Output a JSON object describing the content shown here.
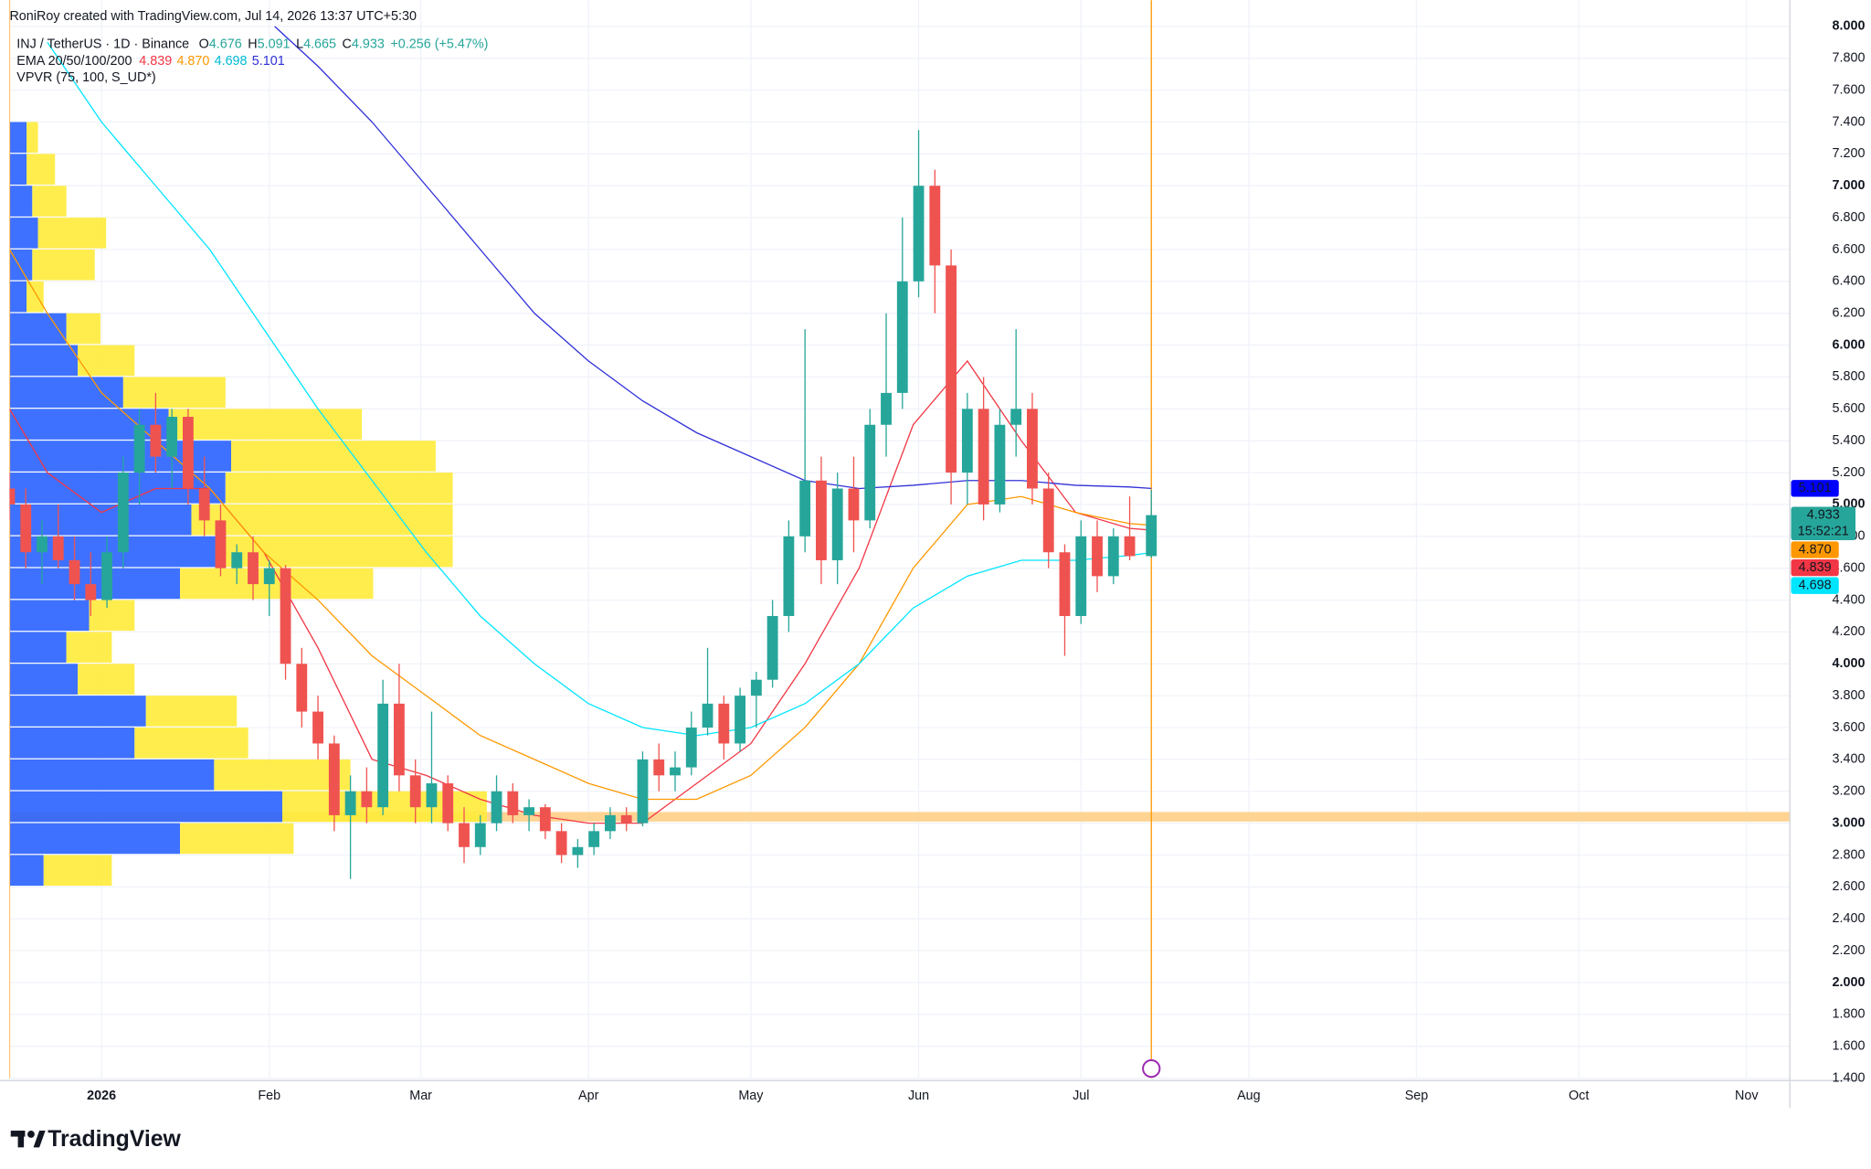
{
  "chart_data": {
    "type": "candlestick",
    "credit": "RoniRoy created with TradingView.com, Jul 14, 2026 13:37 UTC+5:30",
    "title": "INJ / TetherUS · 1D · Binance",
    "legend_ohlc": {
      "open_prefix": "O",
      "high_prefix": "H",
      "low_prefix": "L",
      "close_prefix": "C",
      "change": "+0.256 (+5.47%)"
    },
    "ema_title": "EMA 20/50/100/200",
    "vpvr_title": "VPVR (75, 100, S_UD*)",
    "countdown": "15:52:21",
    "brand": "TradingView",
    "up_color": "#26a69a",
    "down_color": "#ef5350",
    "x": [
      -17,
      -14,
      -11,
      -8,
      -5,
      -2,
      1,
      4,
      7,
      10,
      13,
      16,
      19,
      22,
      25,
      28,
      31,
      34,
      37,
      40,
      43,
      46,
      49,
      52,
      55,
      58,
      61,
      64,
      67,
      70,
      73,
      76,
      79,
      82,
      85,
      88,
      91,
      94,
      97,
      100,
      103,
      106,
      109,
      112,
      115,
      118,
      121,
      124,
      127,
      130,
      133,
      136,
      139,
      142,
      145,
      148,
      151,
      154,
      157,
      160,
      163,
      166,
      169,
      172,
      175,
      178,
      181,
      184,
      187,
      190,
      194
    ],
    "open": [
      5.1,
      5.0,
      4.7,
      4.8,
      4.65,
      4.5,
      4.4,
      4.7,
      5.2,
      5.5,
      5.3,
      5.55,
      5.1,
      4.9,
      4.6,
      4.7,
      4.5,
      4.6,
      4.0,
      3.7,
      3.5,
      3.05,
      3.2,
      3.1,
      3.75,
      3.3,
      3.1,
      3.25,
      3.0,
      2.85,
      3.0,
      3.2,
      3.05,
      3.1,
      2.95,
      2.8,
      2.85,
      2.95,
      3.05,
      3.0,
      3.4,
      3.3,
      3.35,
      3.6,
      3.75,
      3.5,
      3.8,
      3.9,
      4.3,
      4.8,
      5.15,
      4.65,
      5.1,
      4.9,
      5.5,
      5.7,
      6.4,
      7.0,
      6.5,
      5.2,
      5.6,
      5.0,
      5.5,
      5.6,
      5.1,
      4.7,
      4.3,
      4.8,
      4.55,
      4.8,
      4.676
    ],
    "high": [
      5.2,
      5.1,
      4.9,
      5.0,
      4.8,
      4.7,
      4.8,
      5.3,
      5.6,
      5.7,
      5.6,
      5.6,
      5.3,
      5.0,
      4.75,
      4.8,
      4.65,
      4.62,
      4.1,
      3.8,
      3.55,
      3.3,
      3.35,
      3.9,
      4.0,
      3.4,
      3.7,
      3.3,
      3.1,
      3.05,
      3.3,
      3.25,
      3.15,
      3.12,
      3.0,
      2.9,
      3.0,
      3.1,
      3.1,
      3.45,
      3.5,
      3.45,
      3.7,
      4.1,
      3.8,
      3.85,
      3.95,
      4.4,
      4.9,
      6.1,
      5.3,
      5.2,
      5.3,
      5.6,
      6.2,
      6.8,
      7.35,
      7.1,
      6.6,
      5.7,
      5.8,
      5.6,
      6.1,
      5.7,
      5.2,
      4.75,
      4.9,
      4.9,
      4.85,
      5.05,
      5.091
    ],
    "low": [
      4.9,
      4.6,
      4.5,
      4.6,
      4.4,
      4.3,
      4.35,
      4.6,
      5.0,
      5.2,
      5.1,
      5.0,
      4.8,
      4.55,
      4.5,
      4.4,
      4.3,
      3.9,
      3.6,
      3.4,
      2.95,
      2.65,
      3.0,
      3.05,
      3.2,
      3.0,
      3.0,
      2.95,
      2.75,
      2.8,
      2.95,
      3.0,
      2.95,
      2.9,
      2.75,
      2.72,
      2.8,
      2.9,
      2.95,
      2.98,
      3.2,
      3.2,
      3.3,
      3.55,
      3.4,
      3.45,
      3.6,
      3.85,
      4.2,
      4.7,
      4.5,
      4.5,
      4.7,
      4.85,
      5.3,
      5.6,
      6.3,
      6.2,
      5.0,
      5.0,
      4.9,
      4.95,
      5.3,
      5.0,
      4.6,
      4.05,
      4.25,
      4.45,
      4.5,
      4.65,
      4.665
    ],
    "close": [
      5.0,
      4.7,
      4.8,
      4.65,
      4.5,
      4.4,
      4.7,
      5.2,
      5.5,
      5.3,
      5.55,
      5.1,
      4.9,
      4.6,
      4.7,
      4.5,
      4.6,
      4.0,
      3.7,
      3.5,
      3.05,
      3.2,
      3.1,
      3.75,
      3.3,
      3.1,
      3.25,
      3.0,
      2.85,
      3.0,
      3.2,
      3.05,
      3.1,
      2.95,
      2.8,
      2.85,
      2.95,
      3.05,
      3.0,
      3.4,
      3.3,
      3.35,
      3.6,
      3.75,
      3.5,
      3.8,
      3.9,
      4.3,
      4.8,
      5.15,
      4.65,
      5.1,
      4.9,
      5.5,
      5.7,
      6.4,
      7.0,
      6.5,
      5.2,
      5.6,
      5.0,
      5.5,
      5.6,
      5.1,
      4.7,
      4.3,
      4.8,
      4.55,
      4.8,
      4.676,
      4.933
    ],
    "ema": [
      {
        "color": "#f23645",
        "x": [
          -17,
          -10,
          0,
          10,
          20,
          30,
          40,
          50,
          60,
          70,
          80,
          90,
          100,
          110,
          120,
          130,
          140,
          150,
          160,
          170,
          180,
          190,
          194
        ],
        "values": [
          5.6,
          5.2,
          4.95,
          5.1,
          5.1,
          4.7,
          4.1,
          3.4,
          3.3,
          3.15,
          3.05,
          3.0,
          3.0,
          3.25,
          3.5,
          4.0,
          4.6,
          5.5,
          5.9,
          5.4,
          4.95,
          4.85,
          4.839
        ],
        "last": {
          "value": 4.839,
          "label": "4.839"
        }
      },
      {
        "color": "#ff9800",
        "x": [
          -17,
          -10,
          0,
          10,
          20,
          30,
          40,
          50,
          60,
          70,
          80,
          90,
          100,
          110,
          120,
          130,
          140,
          150,
          160,
          170,
          180,
          190,
          194
        ],
        "values": [
          6.6,
          6.2,
          5.7,
          5.4,
          5.1,
          4.7,
          4.4,
          4.05,
          3.8,
          3.55,
          3.4,
          3.25,
          3.15,
          3.15,
          3.3,
          3.6,
          4.0,
          4.6,
          5.0,
          5.05,
          4.95,
          4.88,
          4.87
        ],
        "last": {
          "value": 4.87,
          "label": "4.870"
        }
      },
      {
        "color": "#00e5ff",
        "x": [
          -10,
          0,
          10,
          20,
          30,
          40,
          50,
          60,
          70,
          80,
          90,
          100,
          110,
          120,
          130,
          140,
          150,
          160,
          170,
          180,
          190,
          194
        ],
        "values": [
          7.9,
          7.4,
          7.0,
          6.6,
          6.1,
          5.6,
          5.15,
          4.7,
          4.3,
          4.0,
          3.75,
          3.6,
          3.55,
          3.6,
          3.75,
          4.0,
          4.35,
          4.55,
          4.65,
          4.65,
          4.68,
          4.698
        ],
        "last": {
          "value": 4.698,
          "label": "4.698"
        }
      },
      {
        "color": "#3030d8",
        "x": [
          32,
          40,
          50,
          60,
          70,
          80,
          90,
          100,
          110,
          120,
          130,
          140,
          150,
          160,
          170,
          180,
          190,
          194
        ],
        "values": [
          8.0,
          7.75,
          7.4,
          7.0,
          6.6,
          6.2,
          5.9,
          5.65,
          5.45,
          5.3,
          5.15,
          5.1,
          5.12,
          5.15,
          5.15,
          5.12,
          5.11,
          5.101
        ],
        "last": {
          "value": 5.101,
          "label": "5.101"
        }
      }
    ],
    "vpvr": {
      "bins": [
        2.6,
        2.8,
        3.0,
        3.2,
        3.4,
        3.6,
        3.8,
        4.0,
        4.2,
        4.4,
        4.6,
        4.8,
        5.0,
        5.2,
        5.4,
        5.6,
        5.8,
        6.0,
        6.2,
        6.4,
        6.6,
        6.8,
        7.0,
        7.2,
        7.4
      ],
      "up": [
        30,
        150,
        240,
        180,
        110,
        120,
        60,
        50,
        70,
        150,
        190,
        160,
        190,
        195,
        140,
        100,
        60,
        50,
        15,
        20,
        25,
        20,
        15,
        15
      ],
      "down": [
        60,
        100,
        180,
        120,
        100,
        80,
        50,
        40,
        40,
        170,
        200,
        230,
        200,
        180,
        170,
        90,
        50,
        30,
        15,
        55,
        60,
        30,
        25,
        10
      ],
      "up_color": "#2962ff",
      "down_color": "#ffeb3b"
    },
    "zone": {
      "low": 3.01,
      "high": 3.07,
      "color": "#ffcc80"
    },
    "vlines": {
      "x": [
        -17,
        194
      ],
      "color": "#ff9800"
    },
    "xlim": [
      -17,
      312
    ],
    "xticks": [
      {
        "value": 0,
        "label": "2026"
      },
      {
        "value": 31,
        "label": "Feb"
      },
      {
        "value": 59,
        "label": "Mar"
      },
      {
        "value": 90,
        "label": "Apr"
      },
      {
        "value": 120,
        "label": "May"
      },
      {
        "value": 151,
        "label": "Jun"
      },
      {
        "value": 181,
        "label": "Jul"
      },
      {
        "value": 212,
        "label": "Aug"
      },
      {
        "value": 243,
        "label": "Sep"
      },
      {
        "value": 273,
        "label": "Oct"
      },
      {
        "value": 304,
        "label": "Nov"
      }
    ],
    "ylim": [
      1.4,
      8.0
    ],
    "yticks": [
      {
        "value": 1.4,
        "label": "1.400"
      },
      {
        "value": 1.6,
        "label": "1.600"
      },
      {
        "value": 1.8,
        "label": "1.800"
      },
      {
        "value": 2.0,
        "label": "2.000"
      },
      {
        "value": 2.2,
        "label": "2.200"
      },
      {
        "value": 2.4,
        "label": "2.400"
      },
      {
        "value": 2.6,
        "label": "2.600"
      },
      {
        "value": 2.8,
        "label": "2.800"
      },
      {
        "value": 3.0,
        "label": "3.000"
      },
      {
        "value": 3.2,
        "label": "3.200"
      },
      {
        "value": 3.4,
        "label": "3.400"
      },
      {
        "value": 3.6,
        "label": "3.600"
      },
      {
        "value": 3.8,
        "label": "3.800"
      },
      {
        "value": 4.0,
        "label": "4.000"
      },
      {
        "value": 4.2,
        "label": "4.200"
      },
      {
        "value": 4.4,
        "label": "4.400"
      },
      {
        "value": 4.6,
        "label": "4.600"
      },
      {
        "value": 4.8,
        "label": "4.800"
      },
      {
        "value": 5.0,
        "label": "5.000"
      },
      {
        "value": 5.2,
        "label": "5.200"
      },
      {
        "value": 5.4,
        "label": "5.400"
      },
      {
        "value": 5.6,
        "label": "5.600"
      },
      {
        "value": 5.8,
        "label": "5.800"
      },
      {
        "value": 6.0,
        "label": "6.000"
      },
      {
        "value": 6.2,
        "label": "6.200"
      },
      {
        "value": 6.4,
        "label": "6.400"
      },
      {
        "value": 6.6,
        "label": "6.600"
      },
      {
        "value": 6.8,
        "label": "6.800"
      },
      {
        "value": 7.0,
        "label": "7.000"
      },
      {
        "value": 7.2,
        "label": "7.200"
      },
      {
        "value": 7.4,
        "label": "7.400"
      },
      {
        "value": 7.6,
        "label": "7.600"
      },
      {
        "value": 7.8,
        "label": "7.800"
      },
      {
        "value": 8.0,
        "label": "8.000"
      }
    ],
    "grid": true
  }
}
